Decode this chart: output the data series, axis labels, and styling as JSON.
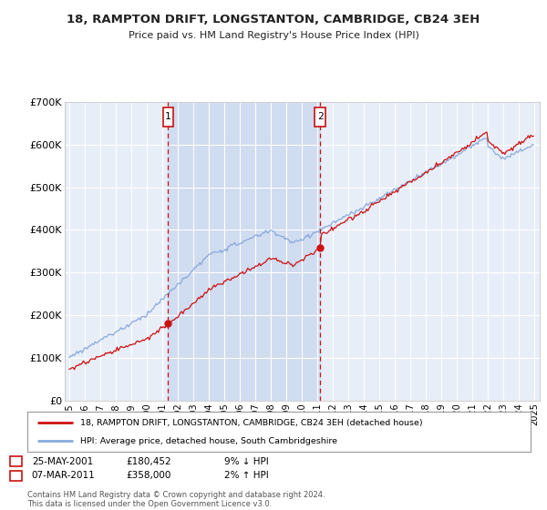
{
  "title": "18, RAMPTON DRIFT, LONGSTANTON, CAMBRIDGE, CB24 3EH",
  "subtitle": "Price paid vs. HM Land Registry's House Price Index (HPI)",
  "ylim": [
    0,
    700000
  ],
  "yticks": [
    0,
    100000,
    200000,
    300000,
    400000,
    500000,
    600000,
    700000
  ],
  "ytick_labels": [
    "£0",
    "£100K",
    "£200K",
    "£300K",
    "£400K",
    "£500K",
    "£600K",
    "£700K"
  ],
  "xlim_start": 1994.7,
  "xlim_end": 2025.3,
  "background_color": "#e8eef8",
  "shade_color": "#d0dcf0",
  "grid_color": "#ffffff",
  "sale1_x": 2001.38,
  "sale1_y": 180452,
  "sale2_x": 2011.17,
  "sale2_y": 358000,
  "sale1_date": "25-MAY-2001",
  "sale1_price": "£180,452",
  "sale1_hpi": "9% ↓ HPI",
  "sale2_date": "07-MAR-2011",
  "sale2_price": "£358,000",
  "sale2_hpi": "2% ↑ HPI",
  "legend_line1": "18, RAMPTON DRIFT, LONGSTANTON, CAMBRIDGE, CB24 3EH (detached house)",
  "legend_line2": "HPI: Average price, detached house, South Cambridgeshire",
  "footer": "Contains HM Land Registry data © Crown copyright and database right 2024.\nThis data is licensed under the Open Government Licence v3.0.",
  "red_color": "#cc1111",
  "blue_color": "#88aadd",
  "marker_box_color": "#cc1111"
}
